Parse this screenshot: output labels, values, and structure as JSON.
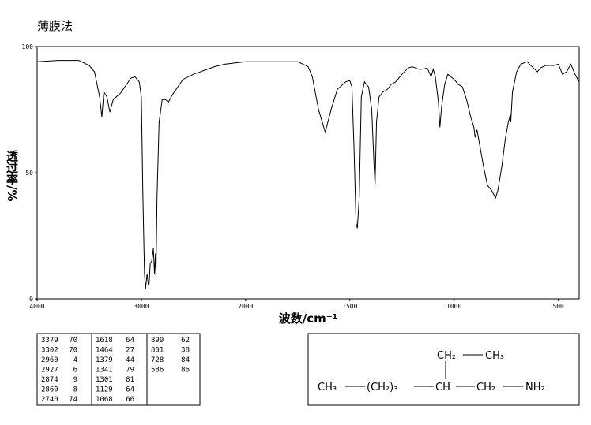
{
  "title": "薄膜法",
  "chart_data": {
    "type": "line",
    "color": "#000000",
    "xlabel": "波数/cm⁻¹",
    "ylabel": "透过率/%",
    "xlim": [
      4000,
      400
    ],
    "xticks": [
      4000,
      3000,
      2000,
      1500,
      1000,
      500
    ],
    "xscale": "tick-spaced",
    "ylim": [
      0,
      100
    ],
    "yticks": [
      0,
      50,
      100
    ],
    "x": [
      4000,
      3800,
      3600,
      3500,
      3450,
      3400,
      3379,
      3360,
      3330,
      3302,
      3270,
      3200,
      3150,
      3100,
      3060,
      3020,
      3000,
      2985,
      2970,
      2960,
      2945,
      2935,
      2927,
      2915,
      2900,
      2885,
      2874,
      2865,
      2860,
      2850,
      2830,
      2800,
      2770,
      2740,
      2700,
      2600,
      2500,
      2400,
      2300,
      2200,
      2100,
      2000,
      1900,
      1800,
      1750,
      1700,
      1680,
      1650,
      1618,
      1590,
      1560,
      1520,
      1500,
      1490,
      1480,
      1470,
      1464,
      1455,
      1445,
      1430,
      1410,
      1395,
      1385,
      1379,
      1372,
      1360,
      1341,
      1320,
      1301,
      1280,
      1250,
      1220,
      1200,
      1170,
      1150,
      1129,
      1110,
      1100,
      1090,
      1075,
      1068,
      1060,
      1045,
      1030,
      1000,
      980,
      960,
      940,
      920,
      905,
      899,
      890,
      875,
      860,
      840,
      820,
      801,
      790,
      770,
      755,
      740,
      730,
      728,
      720,
      700,
      680,
      650,
      620,
      600,
      586,
      560,
      520,
      500,
      480,
      460,
      440,
      420,
      400
    ],
    "values": [
      94,
      94.5,
      94.5,
      92.5,
      90,
      80,
      72,
      82,
      80,
      74,
      79,
      81.5,
      84.5,
      87.5,
      88,
      86,
      80,
      40,
      10,
      4,
      10,
      6,
      5,
      14,
      15,
      20,
      10,
      18,
      9,
      40,
      70,
      79,
      79,
      78,
      81,
      87,
      89,
      90.5,
      92,
      93,
      93.5,
      94,
      94,
      94,
      94,
      92,
      88,
      75,
      66,
      75,
      83,
      86,
      86.5,
      84,
      60,
      30,
      28,
      40,
      80,
      86,
      84,
      75,
      55,
      45,
      70,
      80,
      82,
      83,
      85,
      86,
      89,
      91.5,
      92,
      91,
      91,
      91.5,
      88,
      91,
      88,
      78,
      68,
      76,
      85,
      89,
      87,
      85,
      84,
      79,
      72,
      68,
      64,
      67,
      60,
      53,
      45,
      43,
      40,
      43,
      53,
      63,
      70,
      73,
      70,
      82,
      90,
      93,
      94,
      91.5,
      90,
      91.5,
      92.5,
      92.5,
      93,
      89,
      90,
      93,
      89,
      86
    ]
  },
  "peaks": {
    "columns": [
      [
        [
          3379,
          70
        ],
        [
          3302,
          70
        ],
        [
          2960,
          4
        ],
        [
          2927,
          6
        ],
        [
          2874,
          9
        ],
        [
          2860,
          8
        ],
        [
          2740,
          74
        ]
      ],
      [
        [
          1618,
          64
        ],
        [
          1464,
          27
        ],
        [
          1379,
          44
        ],
        [
          1341,
          79
        ],
        [
          1301,
          81
        ],
        [
          1129,
          64
        ],
        [
          1068,
          66
        ]
      ],
      [
        [
          899,
          62
        ],
        [
          801,
          38
        ],
        [
          728,
          84
        ],
        [
          586,
          86
        ]
      ]
    ]
  },
  "structure": {
    "branch": [
      "CH₂",
      "CH₃"
    ],
    "chain": [
      "CH₃",
      "(CH₂)₃",
      "CH",
      "CH₂",
      "NH₂"
    ]
  }
}
